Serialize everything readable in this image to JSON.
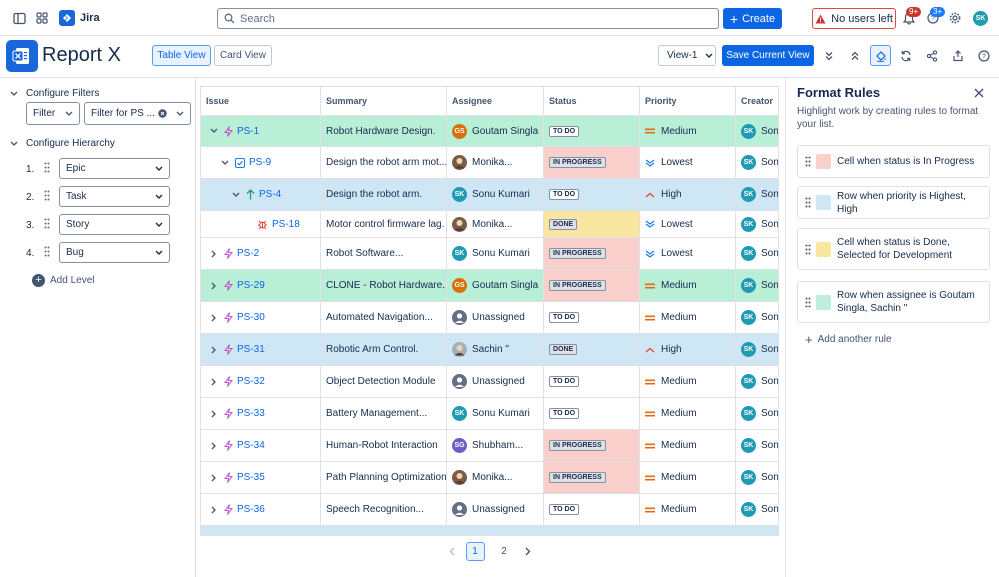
{
  "topbar": {
    "app_name": "Jira",
    "search_placeholder": "Search",
    "create_label": "Create",
    "no_users_label": "No users left",
    "notif_badge": "9+",
    "help_badge": "3+",
    "user_initials": "SK"
  },
  "header": {
    "title": "Report X",
    "table_view": "Table View",
    "card_view": "Card View",
    "view_select": "View-1",
    "save_view": "Save Current View"
  },
  "sidebar": {
    "filters_title": "Configure Filters",
    "filter_label": "Filter",
    "filter_for": "Filter for PS ...",
    "hierarchy_title": "Configure Hierarchy",
    "levels": [
      {
        "num": "1.",
        "label": "Epic"
      },
      {
        "num": "2.",
        "label": "Task"
      },
      {
        "num": "3.",
        "label": "Story"
      },
      {
        "num": "4.",
        "label": "Bug"
      }
    ],
    "add_level": "Add Level"
  },
  "table": {
    "columns": [
      "Issue",
      "Summary",
      "Assignee",
      "Status",
      "Priority",
      "Creator"
    ],
    "rows": [
      {
        "key": "PS-1",
        "summary": "Robot Hardware Design.",
        "assignee": "Goutam Singla",
        "av": "GS",
        "status": "TO DO",
        "priority": "Medium",
        "creator": "Son"
      },
      {
        "key": "PS-9",
        "summary": "Design the robot arm mot...",
        "assignee": "Monika...",
        "av": "",
        "status": "IN PROGRESS",
        "priority": "Lowest",
        "creator": "Son"
      },
      {
        "key": "PS-4",
        "summary": "Design the robot arm.",
        "assignee": "Sonu Kumari",
        "av": "SK",
        "status": "TO DO",
        "priority": "High",
        "creator": "Son"
      },
      {
        "key": "PS-18",
        "summary": "Motor control firmware lag.",
        "assignee": "Monika...",
        "av": "",
        "status": "DONE",
        "priority": "Lowest",
        "creator": "Son"
      },
      {
        "key": "PS-2",
        "summary": "Robot Software...",
        "assignee": "Sonu Kumari",
        "av": "SK",
        "status": "IN PROGRESS",
        "priority": "Lowest",
        "creator": "Son"
      },
      {
        "key": "PS-29",
        "summary": "CLONE - Robot Hardware...",
        "assignee": "Goutam Singla",
        "av": "GS",
        "status": "IN PROGRESS",
        "priority": "Medium",
        "creator": "Son"
      },
      {
        "key": "PS-30",
        "summary": "Automated Navigation...",
        "assignee": "Unassigned",
        "av": "",
        "status": "TO DO",
        "priority": "Medium",
        "creator": "Son"
      },
      {
        "key": "PS-31",
        "summary": "Robotic Arm Control.",
        "assignee": "Sachin \"",
        "av": "",
        "status": "DONE",
        "priority": "High",
        "creator": "Son"
      },
      {
        "key": "PS-32",
        "summary": "Object Detection Module",
        "assignee": "Unassigned",
        "av": "",
        "status": "TO DO",
        "priority": "Medium",
        "creator": "Son"
      },
      {
        "key": "PS-33",
        "summary": "Battery Management...",
        "assignee": "Sonu Kumari",
        "av": "SK",
        "status": "TO DO",
        "priority": "Medium",
        "creator": "Son"
      },
      {
        "key": "PS-34",
        "summary": "Human-Robot Interaction",
        "assignee": "Shubham...",
        "av": "SG",
        "status": "IN PROGRESS",
        "priority": "Medium",
        "creator": "Son"
      },
      {
        "key": "PS-35",
        "summary": "Path Planning Optimization",
        "assignee": "Monika...",
        "av": "",
        "status": "IN PROGRESS",
        "priority": "Medium",
        "creator": "Son"
      },
      {
        "key": "PS-36",
        "summary": "Speech Recognition...",
        "assignee": "Unassigned",
        "av": "",
        "status": "TO DO",
        "priority": "Medium",
        "creator": "Son"
      }
    ]
  },
  "pagination": {
    "pages": [
      "1",
      "2"
    ],
    "current": "1"
  },
  "format_rules": {
    "title": "Format Rules",
    "description": "Highlight work by creating rules to format your list.",
    "rules": [
      {
        "label": "Cell when status is In Progress",
        "color": "#f9d0cc"
      },
      {
        "label": "Row when priority is Highest, High",
        "color": "#cfe7f5"
      },
      {
        "label": "Cell when status is Done, Selected for Development",
        "color": "#f8e6a0"
      },
      {
        "label": "Row when assignee is Goutam Singla, Sachin \"",
        "color": "#bfeedc"
      }
    ],
    "add_rule": "Add another rule"
  },
  "colors": {
    "green_row": "#b9eed7",
    "blue_row": "#cfe7f5",
    "red_cell": "#f9cfcb",
    "yellow_cell": "#f8e6a0",
    "accent": "#0c66e4"
  }
}
